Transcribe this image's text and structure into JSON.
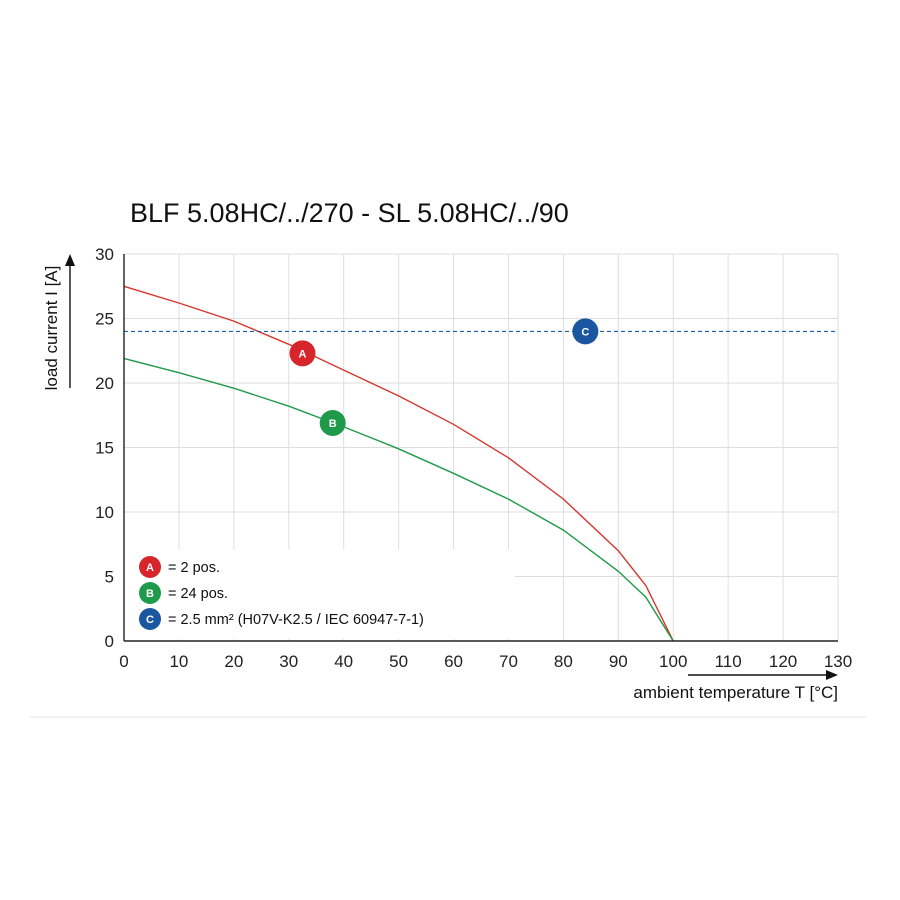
{
  "chart_data": {
    "type": "line",
    "title": "BLF 5.08HC/../270 - SL 5.08HC/../90",
    "xlabel": "ambient temperature T [°C]",
    "ylabel": "load current I [A]",
    "xlim": [
      0,
      130
    ],
    "ylim": [
      0,
      30
    ],
    "x_ticks": [
      "0",
      "10",
      "20",
      "30",
      "40",
      "50",
      "60",
      "70",
      "80",
      "90",
      "100",
      "110",
      "120",
      "130"
    ],
    "y_ticks": [
      "0",
      "5",
      "10",
      "15",
      "20",
      "25",
      "30"
    ],
    "grid": true,
    "series": [
      {
        "name": "A",
        "color": "#d6352b",
        "x": [
          0,
          10,
          20,
          30,
          40,
          50,
          60,
          70,
          80,
          90,
          95,
          100
        ],
        "y": [
          27.5,
          26.2,
          24.8,
          23.0,
          21.0,
          19.0,
          16.8,
          14.2,
          11.0,
          7.0,
          4.3,
          0
        ]
      },
      {
        "name": "B",
        "color": "#1f9a4a",
        "x": [
          0,
          10,
          20,
          30,
          40,
          50,
          60,
          70,
          80,
          90,
          95,
          100
        ],
        "y": [
          21.9,
          20.8,
          19.6,
          18.2,
          16.6,
          14.9,
          13.0,
          11.0,
          8.6,
          5.4,
          3.4,
          0
        ]
      },
      {
        "name": "C",
        "color": "#1b5ea8",
        "style": "dashed",
        "x": [
          0,
          130
        ],
        "y": [
          24,
          24
        ]
      }
    ],
    "markers": [
      {
        "label": "A",
        "x": 32.5,
        "y": 22.3,
        "color": "#d6262b"
      },
      {
        "label": "B",
        "x": 38.0,
        "y": 16.9,
        "color": "#1f9a4a"
      },
      {
        "label": "C",
        "x": 84.0,
        "y": 24.0,
        "color": "#1b56a0"
      }
    ],
    "legend": {
      "placement": "bottom-left",
      "entries": [
        {
          "badge": "A",
          "text": "= 2 pos.",
          "color": "#d6262b"
        },
        {
          "badge": "B",
          "text": "= 24 pos.",
          "color": "#1f9a4a"
        },
        {
          "badge": "C",
          "text": "= 2.5 mm² (H07V-K2.5 / IEC 60947-7-1)",
          "color": "#1b56a0"
        }
      ]
    }
  }
}
